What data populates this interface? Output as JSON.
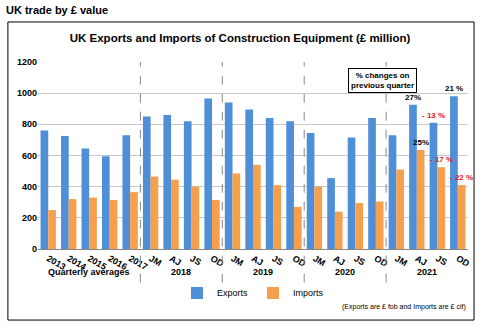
{
  "chart_data": {
    "type": "bar",
    "header": "UK trade by £ value",
    "title": "UK Exports and Imports of Construction Equipment (£ million)",
    "note": "(Exports are £ fob and Imports are £ cif)",
    "change_caption": "% changes on\nprevious quarter",
    "categories": [
      "2013",
      "2014",
      "2015",
      "2016",
      "2017",
      "JM",
      "AJ",
      "JS",
      "OD",
      "JM",
      "AJ",
      "JS",
      "OD",
      "JM",
      "AJ",
      "JS",
      "OD",
      "JM",
      "AJ",
      "JS",
      "OD"
    ],
    "groups": [
      {
        "label": "Quarterly averages",
        "size": 5
      },
      {
        "label": "2018",
        "size": 4
      },
      {
        "label": "2019",
        "size": 4
      },
      {
        "label": "2020",
        "size": 4
      },
      {
        "label": "2021",
        "size": 4
      }
    ],
    "series": [
      {
        "name": "Exports",
        "color": "#4F8FD8",
        "values": [
          760,
          725,
          645,
          595,
          730,
          850,
          860,
          820,
          965,
          940,
          895,
          840,
          820,
          745,
          455,
          715,
          840,
          730,
          925,
          810,
          980
        ],
        "change_labels": [
          null,
          null,
          null,
          null,
          null,
          null,
          null,
          null,
          null,
          null,
          null,
          null,
          null,
          null,
          null,
          null,
          null,
          null,
          {
            "text": "27%",
            "color": "#000000"
          },
          {
            "text": "- 13 %",
            "color": "#E02020"
          },
          {
            "text": "21 %",
            "color": "#000000"
          }
        ]
      },
      {
        "name": "Imports",
        "color": "#F6A04D",
        "values": [
          250,
          320,
          330,
          315,
          365,
          465,
          445,
          400,
          315,
          485,
          540,
          410,
          270,
          400,
          240,
          295,
          305,
          510,
          635,
          525,
          410
        ],
        "change_labels": [
          null,
          null,
          null,
          null,
          null,
          null,
          null,
          null,
          null,
          null,
          null,
          null,
          null,
          null,
          null,
          null,
          null,
          null,
          {
            "text": "25%",
            "color": "#000000"
          },
          {
            "text": "- 17 %",
            "color": "#E02020"
          },
          {
            "text": "- 22 %",
            "color": "#E02020"
          }
        ]
      }
    ],
    "ylim": [
      0,
      1200
    ],
    "yticks": [
      0,
      200,
      400,
      600,
      800,
      1000,
      1200
    ],
    "grid": true,
    "legend": "bottom"
  }
}
